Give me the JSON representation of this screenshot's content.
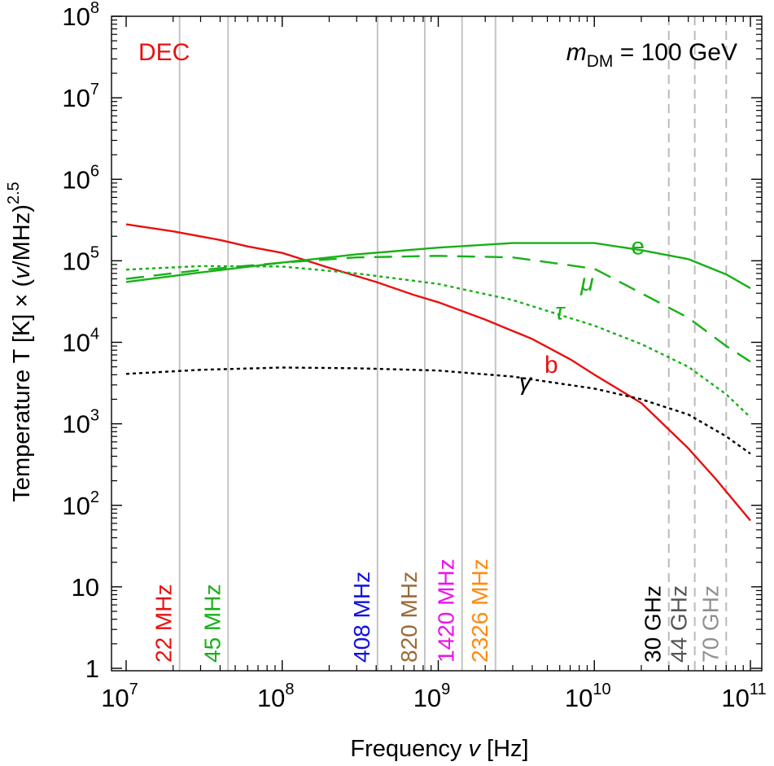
{
  "chart_data": {
    "type": "line",
    "title_label": "DEC",
    "mass_label": {
      "prefix": "m",
      "subscript": "DM",
      "suffix": " = 100 GeV"
    },
    "xlabel": {
      "main": "Frequency ",
      "var": "v",
      "unit": " [Hz]"
    },
    "ylabel": {
      "main": "Temperature T [K] × (",
      "var": "v",
      "unit": "/MHz)",
      "sup": "2.5"
    },
    "xscale": "log",
    "yscale": "log",
    "xlim": [
      10000000.0,
      100000000000.0
    ],
    "ylim": [
      1,
      100000000.0
    ],
    "x_ticks": [
      {
        "base": "10",
        "exp": "7",
        "value": 10000000.0
      },
      {
        "base": "10",
        "exp": "8",
        "value": 100000000.0
      },
      {
        "base": "10",
        "exp": "9",
        "value": 1000000000.0
      },
      {
        "base": "10",
        "exp": "10",
        "value": 10000000000.0
      },
      {
        "base": "10",
        "exp": "11",
        "value": 100000000000.0
      }
    ],
    "y_ticks": [
      {
        "text": "1",
        "value": 1
      },
      {
        "text": "10",
        "value": 10
      },
      {
        "base": "10",
        "exp": "2",
        "value": 100
      },
      {
        "base": "10",
        "exp": "3",
        "value": 1000
      },
      {
        "base": "10",
        "exp": "4",
        "value": 10000
      },
      {
        "base": "10",
        "exp": "5",
        "value": 100000
      },
      {
        "base": "10",
        "exp": "6",
        "value": 1000000
      },
      {
        "base": "10",
        "exp": "7",
        "value": 10000000
      },
      {
        "base": "10",
        "exp": "8",
        "value": 100000000
      }
    ],
    "frequency_markers": [
      {
        "label": "22 MHz",
        "freq_hz": 22000000.0,
        "color": "#e81010",
        "style": "solid"
      },
      {
        "label": "45 MHz",
        "freq_hz": 45000000.0,
        "color": "#18b018",
        "style": "solid"
      },
      {
        "label": "408 MHz",
        "freq_hz": 408000000.0,
        "color": "#1010e0",
        "style": "solid"
      },
      {
        "label": "820 MHz",
        "freq_hz": 820000000.0,
        "color": "#9a6a38",
        "style": "solid"
      },
      {
        "label": "1420 MHz",
        "freq_hz": 1420000000.0,
        "color": "#ee10ee",
        "style": "solid"
      },
      {
        "label": "2326 MHz",
        "freq_hz": 2326000000.0,
        "color": "#ff8a10",
        "style": "solid"
      },
      {
        "label": "30 GHz",
        "freq_hz": 30000000000.0,
        "color": "#000000",
        "style": "dashed"
      },
      {
        "label": "44 GHz",
        "freq_hz": 44000000000.0,
        "color": "#555555",
        "style": "dashed"
      },
      {
        "label": "70 GHz",
        "freq_hz": 70000000000.0,
        "color": "#909090",
        "style": "dashed"
      }
    ],
    "series": [
      {
        "name": "b",
        "color": "#e81010",
        "style": "solid",
        "x": [
          10000000.0,
          20000000.0,
          40000000.0,
          60000000.0,
          100000000.0,
          200000000.0,
          400000000.0,
          700000000.0,
          1000000000.0,
          2000000000.0,
          4000000000.0,
          7000000000.0,
          10000000000.0,
          20000000000.0,
          40000000000.0,
          60000000000.0,
          100000000000.0
        ],
        "y": [
          280000,
          230000,
          180000,
          150000,
          125000,
          82000,
          55000,
          38000,
          31000,
          19000,
          11000,
          6200,
          4000,
          1800,
          500,
          210,
          65
        ]
      },
      {
        "name": "e",
        "color": "#18b018",
        "style": "solid",
        "x": [
          10000000.0,
          30000000.0,
          100000000.0,
          300000000.0,
          1000000000.0,
          3000000000.0,
          10000000000.0,
          20000000000.0,
          40000000000.0,
          70000000000.0,
          100000000000.0
        ],
        "y": [
          55000,
          72000,
          95000,
          120000,
          145000,
          165000,
          165000,
          135000,
          105000,
          68000,
          46000
        ]
      },
      {
        "name": "μ",
        "color": "#18b018",
        "style": "dashed",
        "x": [
          10000000.0,
          30000000.0,
          100000000.0,
          300000000.0,
          1000000000.0,
          3000000000.0,
          10000000000.0,
          20000000000.0,
          40000000000.0,
          70000000000.0,
          100000000000.0
        ],
        "y": [
          60000,
          77000,
          95000,
          110000,
          115000,
          110000,
          80000,
          40000,
          20000,
          9000,
          5800
        ]
      },
      {
        "name": "τ",
        "color": "#18b018",
        "style": "dotted",
        "x": [
          10000000.0,
          30000000.0,
          100000000.0,
          300000000.0,
          1000000000.0,
          3000000000.0,
          10000000000.0,
          20000000000.0,
          40000000000.0,
          70000000000.0,
          100000000000.0
        ],
        "y": [
          78000,
          86000,
          85000,
          70000,
          52000,
          33000,
          16000,
          9500,
          5000,
          2300,
          1200
        ]
      },
      {
        "name": "γ",
        "color": "#000000",
        "style": "dotted",
        "x": [
          10000000.0,
          30000000.0,
          100000000.0,
          300000000.0,
          1000000000.0,
          3000000000.0,
          10000000000.0,
          20000000000.0,
          40000000000.0,
          70000000000.0,
          100000000000.0
        ],
        "y": [
          4100,
          4600,
          4900,
          4800,
          4500,
          3800,
          2700,
          2000,
          1300,
          700,
          430
        ]
      }
    ]
  },
  "series_labels": [
    {
      "text": "e",
      "color": "#18b018",
      "x": 19000000000.0,
      "y": 120000
    },
    {
      "text": "μ",
      "color": "#18b018",
      "x": 9000000000.0,
      "y": 43000,
      "italic": true
    },
    {
      "text": "τ",
      "color": "#18b018",
      "x": 6000000000.0,
      "y": 19000,
      "italic": true
    },
    {
      "text": "b",
      "color": "#e81010",
      "x": 5300000000.0,
      "y": 4200
    },
    {
      "text": "γ",
      "color": "#000000",
      "x": 3600000000.0,
      "y": 2600,
      "italic": true
    }
  ]
}
